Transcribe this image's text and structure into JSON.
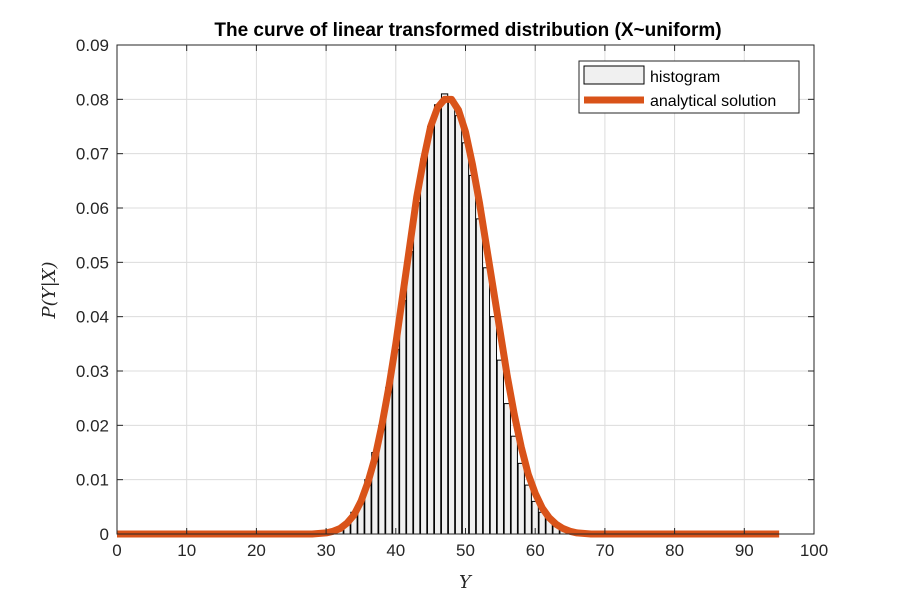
{
  "chart_data": {
    "type": "bar",
    "title": "The curve of linear transformed distribution (X~uniform)",
    "xlabel": "Y",
    "ylabel": "P(Y|X)",
    "xlim": [
      0,
      100
    ],
    "ylim": [
      0,
      0.09
    ],
    "x_ticks": [
      "0",
      "10",
      "20",
      "30",
      "40",
      "50",
      "60",
      "70",
      "80",
      "90",
      "100"
    ],
    "y_ticks": [
      "0",
      "0.01",
      "0.02",
      "0.03",
      "0.04",
      "0.05",
      "0.06",
      "0.07",
      "0.08",
      "0.09"
    ],
    "grid": true,
    "legend_position": "top-right",
    "series": [
      {
        "name": "histogram",
        "kind": "histogram",
        "color": "#000000",
        "fill": "#f0f0f0",
        "x": [
          32,
          33,
          34,
          35,
          36,
          37,
          38,
          39,
          40,
          41,
          42,
          43,
          44,
          45,
          46,
          47,
          48,
          49,
          50,
          51,
          52,
          53,
          54,
          55,
          56,
          57,
          58,
          59,
          60,
          61,
          62,
          63,
          64
        ],
        "values": [
          0.001,
          0.002,
          0.004,
          0.006,
          0.01,
          0.015,
          0.02,
          0.027,
          0.034,
          0.043,
          0.052,
          0.061,
          0.069,
          0.075,
          0.079,
          0.081,
          0.08,
          0.077,
          0.072,
          0.066,
          0.058,
          0.049,
          0.04,
          0.032,
          0.024,
          0.018,
          0.013,
          0.009,
          0.006,
          0.004,
          0.003,
          0.002,
          0.001
        ]
      },
      {
        "name": "analytical solution",
        "kind": "line",
        "color": "#D95319",
        "x": [
          0,
          5,
          10,
          15,
          20,
          25,
          28,
          30,
          31,
          32,
          33,
          34,
          35,
          36,
          37,
          38,
          39,
          40,
          41,
          42,
          43,
          44,
          45,
          46,
          47,
          48,
          49,
          50,
          51,
          52,
          53,
          54,
          55,
          56,
          57,
          58,
          59,
          60,
          61,
          62,
          63,
          64,
          65,
          66,
          68,
          70,
          75,
          80,
          85,
          90,
          95
        ],
        "values": [
          0,
          0,
          0,
          0,
          0,
          0,
          0,
          0.0002,
          0.0005,
          0.001,
          0.002,
          0.0035,
          0.006,
          0.0095,
          0.014,
          0.02,
          0.027,
          0.035,
          0.044,
          0.053,
          0.062,
          0.069,
          0.075,
          0.0785,
          0.08,
          0.08,
          0.078,
          0.074,
          0.068,
          0.061,
          0.053,
          0.045,
          0.037,
          0.029,
          0.022,
          0.016,
          0.011,
          0.0075,
          0.0048,
          0.003,
          0.0018,
          0.001,
          0.0005,
          0.0002,
          0,
          0,
          0,
          0,
          0,
          0,
          0
        ]
      }
    ]
  }
}
